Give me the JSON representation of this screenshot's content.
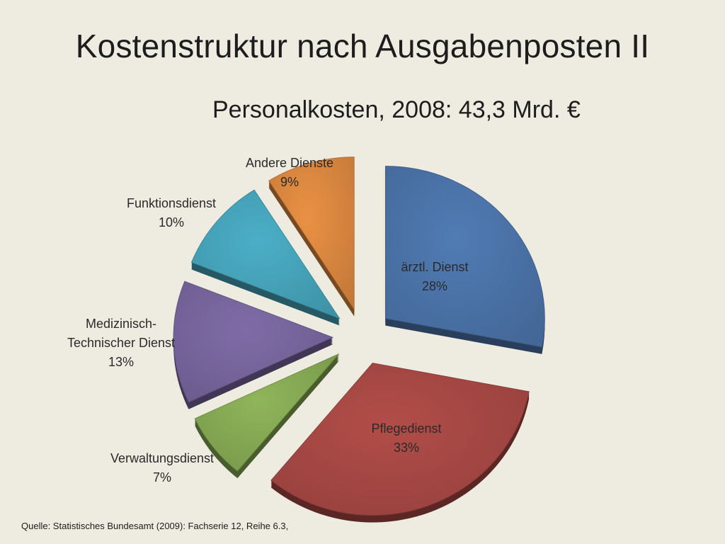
{
  "slide": {
    "title": "Kostenstruktur nach Ausgabenposten II",
    "source": "Quelle: Statistisches Bundesamt (2009): Fachserie 12, Reihe 6.3,"
  },
  "chart_data": {
    "type": "pie",
    "title": "Personalkosten, 2008: 43,3 Mrd. €",
    "exploded": true,
    "style": "3d",
    "slices": [
      {
        "label": "ärztl. Dienst",
        "value": 28,
        "value_label": "28%",
        "color": "#4a72a7"
      },
      {
        "label": "Pflegedienst",
        "value": 33,
        "value_label": "33%",
        "color": "#a54744"
      },
      {
        "label": "Verwaltungsdienst",
        "value": 7,
        "value_label": "7%",
        "color": "#84a853"
      },
      {
        "label": "Medizinisch- Technischer Dienst",
        "value": 13,
        "value_label": "13%",
        "color": "#76649b"
      },
      {
        "label": "Funktionsdienst",
        "value": 10,
        "value_label": "10%",
        "color": "#45a2b8"
      },
      {
        "label": "Andere Dienste",
        "value": 9,
        "value_label": "9%",
        "color": "#d9863f"
      }
    ]
  }
}
